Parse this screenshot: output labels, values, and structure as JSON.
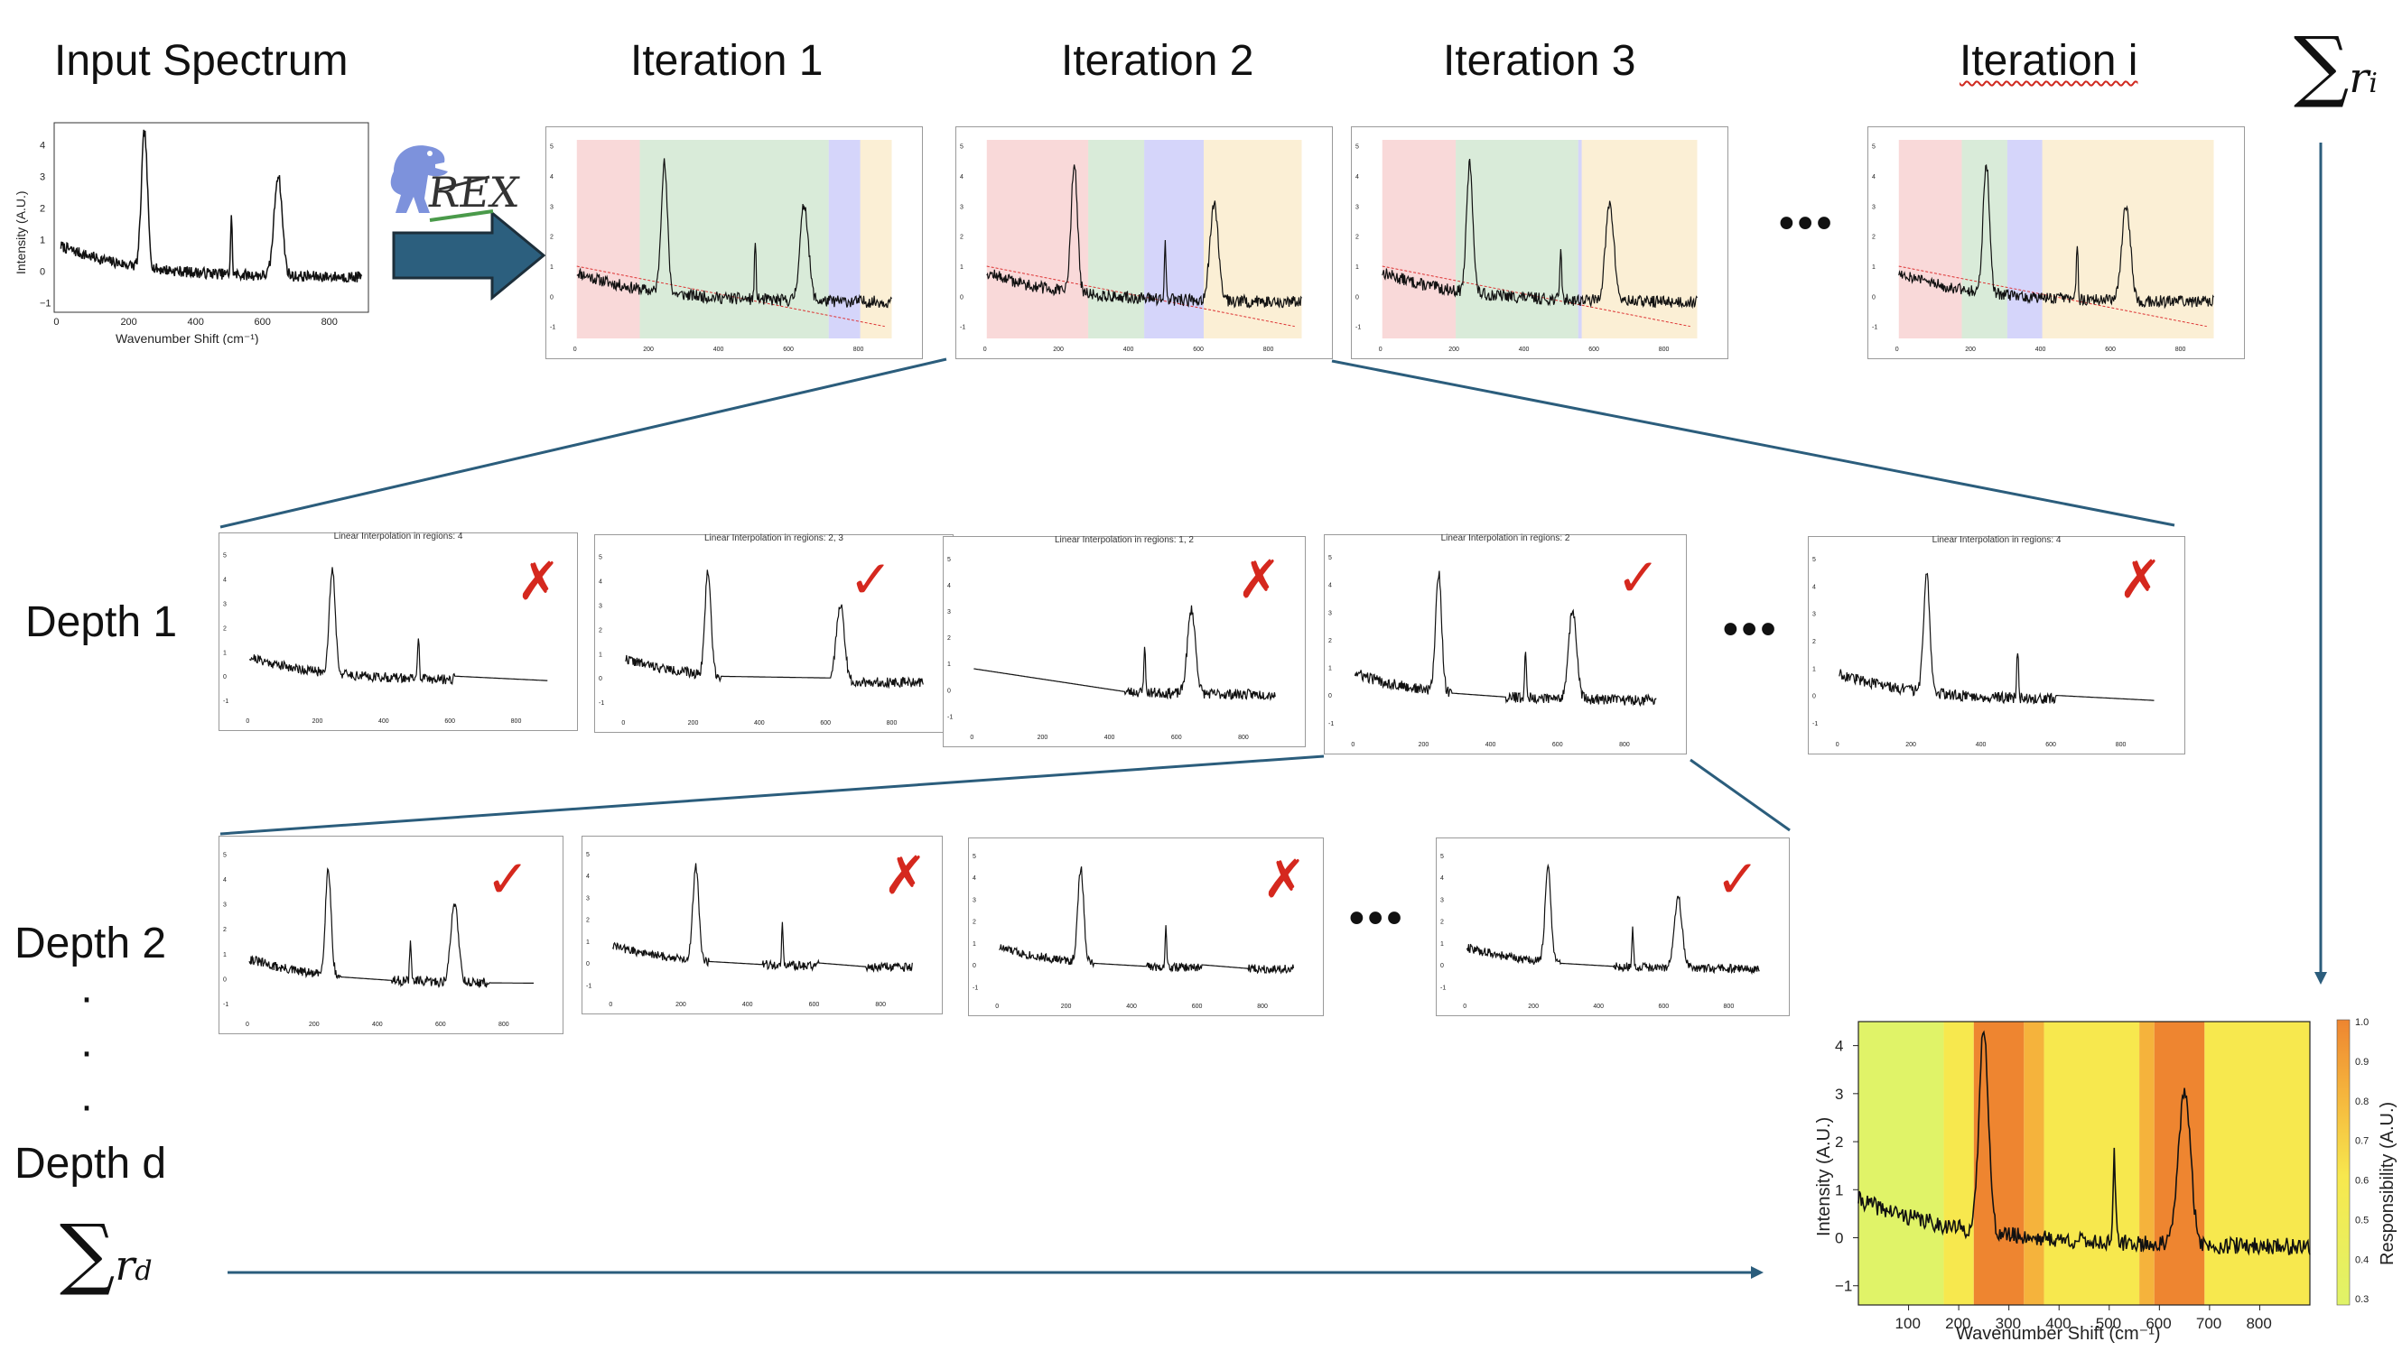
{
  "titles": {
    "input": "Input Spectrum",
    "iter1": "Iteration 1",
    "iter2": "Iteration 2",
    "iter3": "Iteration 3",
    "iteri": "Iteration i"
  },
  "depths": {
    "d1": "Depth 1",
    "d2": "Depth 2",
    "dd": "Depth d"
  },
  "sums": {
    "ri_var": "r",
    "ri_sub": "i",
    "rd_var": "r",
    "rd_sub": "d",
    "sigma": "∑"
  },
  "ellipsis": "•••",
  "vdots": [
    "·",
    "·",
    "·"
  ],
  "logo_text": "REX",
  "marks": {
    "x": "✗",
    "ok": "✓"
  },
  "input_plot": {
    "ylabel": "Intensity (A.U.)",
    "xlabel": "Wavenumber Shift (cm⁻¹)",
    "xticks": [
      "0",
      "200",
      "400",
      "600",
      "800"
    ],
    "yticks": [
      "4",
      "3",
      "2",
      "1",
      "0",
      "−1"
    ]
  },
  "depth1_titles": [
    "Linear Interpolation in regions: 4",
    "Linear Interpolation in regions: 2, 3",
    "Linear Interpolation in regions: 1, 2",
    "Linear Interpolation in regions: 2",
    "Linear Interpolation in regions: 4"
  ],
  "depth1_results": [
    "x",
    "ok",
    "x",
    "ok",
    "x"
  ],
  "depth2_results": [
    "ok",
    "x",
    "x",
    "ok"
  ],
  "result_plot": {
    "ylabel": "Intensity (A.U.)",
    "xlabel": "Wavenumber Shift (cm⁻¹)",
    "colorbar_label": "Responsibility (A.U.)",
    "xticks": [
      "100",
      "200",
      "300",
      "400",
      "500",
      "600",
      "700",
      "800"
    ],
    "yticks": [
      "4",
      "3",
      "2",
      "1",
      "0",
      "−1"
    ],
    "cbticks": [
      "1.0",
      "0.9",
      "0.8",
      "0.7",
      "0.6",
      "0.5",
      "0.4",
      "0.3"
    ],
    "cmap": [
      "#e0f368",
      "#f7e84e",
      "#f5b33c",
      "#ee8530"
    ]
  },
  "chart_data": {
    "type": "line",
    "title": "",
    "xlabel": "Wavenumber Shift (cm⁻¹)",
    "ylabel": "Intensity (A.U.)",
    "xlim": [
      0,
      900
    ],
    "ylim": [
      -1.4,
      4.5
    ],
    "peaks": [
      {
        "x": 250,
        "height": 4.3
      },
      {
        "x": 510,
        "height": 1.8
      },
      {
        "x": 650,
        "height": 3.2
      }
    ],
    "responsibility_bands": [
      {
        "from": 0,
        "to": 170,
        "value": 0.3
      },
      {
        "from": 170,
        "to": 230,
        "value": 0.5
      },
      {
        "from": 230,
        "to": 330,
        "value": 0.95
      },
      {
        "from": 330,
        "to": 370,
        "value": 0.75
      },
      {
        "from": 370,
        "to": 560,
        "value": 0.45
      },
      {
        "from": 560,
        "to": 590,
        "value": 0.6
      },
      {
        "from": 590,
        "to": 690,
        "value": 1.0
      },
      {
        "from": 690,
        "to": 900,
        "value": 0.45
      }
    ]
  }
}
